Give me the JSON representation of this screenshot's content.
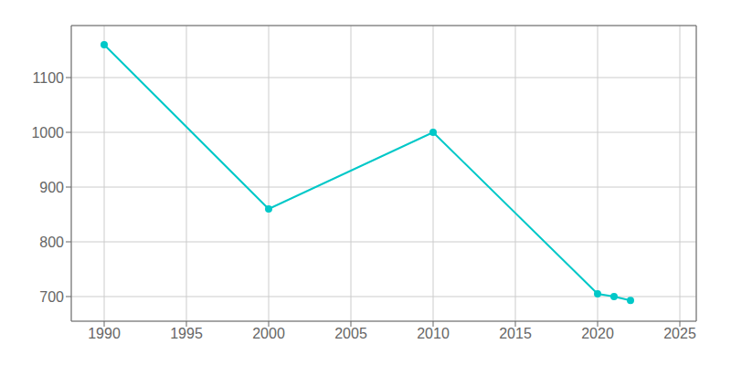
{
  "chart_data": {
    "type": "line",
    "x": [
      1990,
      2000,
      2010,
      2020,
      2021,
      2022
    ],
    "values": [
      1160,
      860,
      1000,
      705,
      700,
      693
    ],
    "color": "#00c8c8",
    "marker": "circle",
    "xlim": [
      1988,
      2026
    ],
    "ylim": [
      655,
      1195
    ],
    "xticks": [
      1990,
      1995,
      2000,
      2005,
      2010,
      2015,
      2020,
      2025
    ],
    "yticks": [
      700,
      800,
      900,
      1000,
      1100
    ],
    "grid": true
  }
}
